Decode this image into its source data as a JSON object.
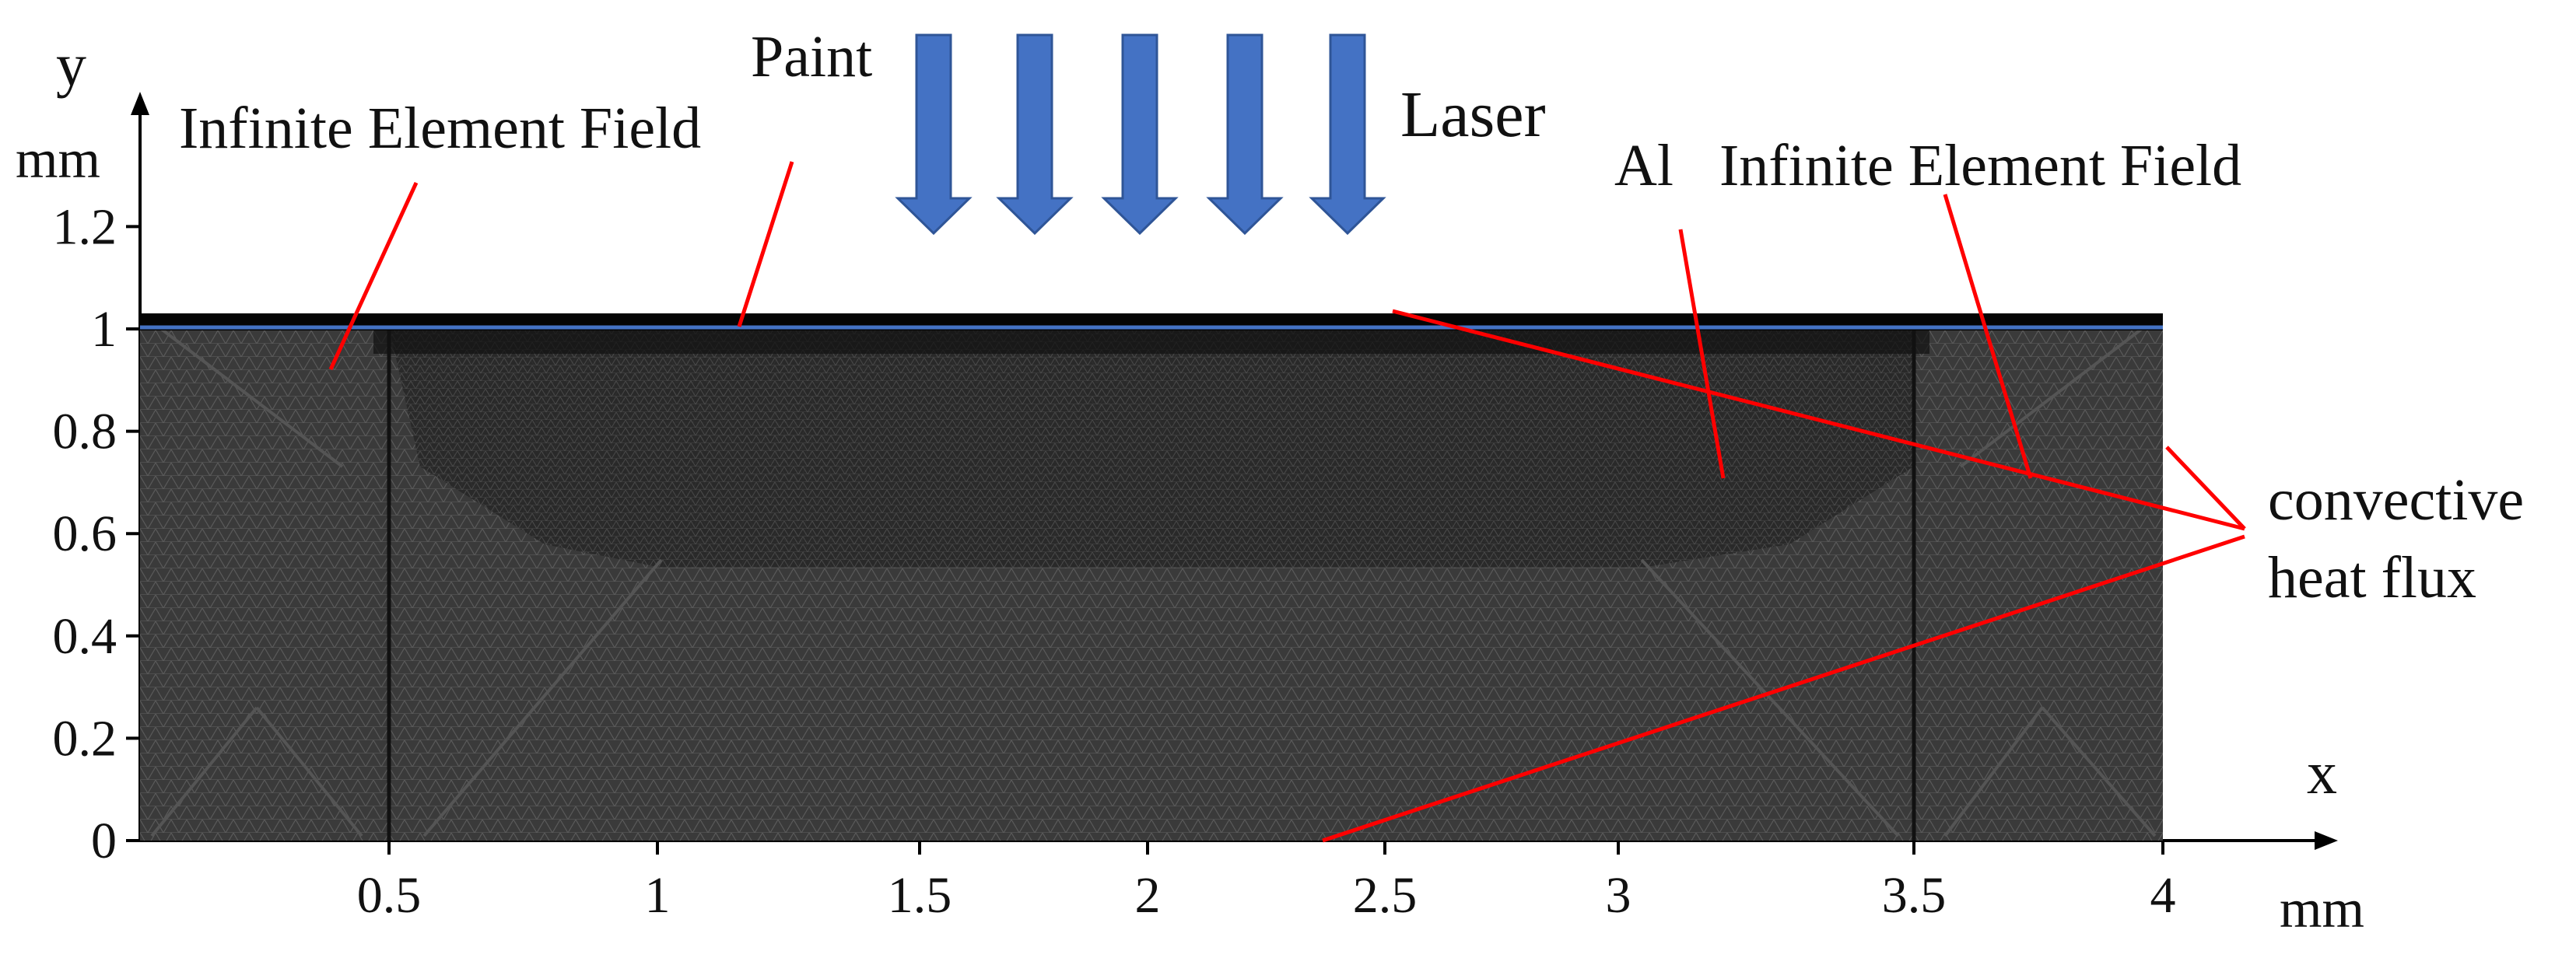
{
  "labels": {
    "paint": "Paint",
    "laser": "Laser",
    "infinite_left": "Infinite Element Field",
    "infinite_right": "Infinite Element Field",
    "al": "Al",
    "convective_1": "convective",
    "convective_2": "heat flux",
    "x_axis": "x",
    "y_axis": "y",
    "x_unit": "mm",
    "y_unit": "mm"
  },
  "x_ticks": [
    "0.5",
    "1",
    "1.5",
    "2",
    "2.5",
    "3",
    "3.5",
    "4"
  ],
  "y_ticks": [
    "0",
    "0.2",
    "0.4",
    "0.6",
    "0.8",
    "1",
    "1.2"
  ],
  "laser_arrows": 5,
  "colors": {
    "mesh": "#3a3a3a",
    "mesh_lines": "#5a5a5a",
    "paint_layer": "#050505",
    "paint_line": "#4472c4",
    "laser_arrow": "#4472c4",
    "callout": "#ff0000",
    "axis": "#000000"
  }
}
